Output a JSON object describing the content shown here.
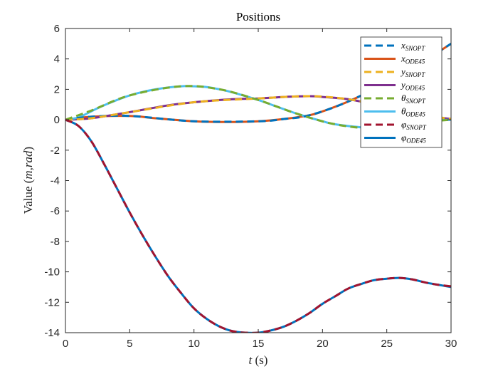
{
  "chart_data": {
    "type": "line",
    "title": "Positions",
    "xlabel": "t (s)",
    "ylabel": "Value (m,rad)",
    "xlim": [
      0,
      30
    ],
    "ylim": [
      -14,
      6
    ],
    "xticks": [
      "0",
      "5",
      "10",
      "15",
      "20",
      "25",
      "30"
    ],
    "yticks": [
      "6",
      "4",
      "2",
      "0",
      "-2",
      "-4",
      "-6",
      "-8",
      "-10",
      "-12",
      "-14"
    ],
    "grid": false,
    "legend_position": "top-right",
    "series": [
      {
        "name": "x_SNOPT",
        "style": "dashed",
        "color": "#0072BD",
        "x": [
          0,
          2,
          5,
          10,
          15,
          17,
          19,
          22,
          26,
          30
        ],
        "y": [
          0,
          0.2,
          0.25,
          -0.1,
          -0.1,
          0.05,
          0.3,
          1.2,
          2.9,
          5
        ]
      },
      {
        "name": "x_ODE45",
        "style": "solid",
        "color": "#D95319",
        "x": [
          0,
          2,
          5,
          7,
          10,
          12.5,
          15,
          17,
          19,
          20,
          22,
          24,
          26,
          28,
          30
        ],
        "y": [
          0,
          0.2,
          0.25,
          0.1,
          -0.1,
          -0.15,
          -0.1,
          0.05,
          0.3,
          0.55,
          1.2,
          2.0,
          2.9,
          3.9,
          5.0
        ]
      },
      {
        "name": "y_SNOPT",
        "style": "dashed",
        "color": "#EDB120",
        "x": [
          0,
          2,
          5,
          10,
          15,
          19,
          22,
          24,
          26,
          30
        ],
        "y": [
          0,
          0.1,
          0.5,
          1.15,
          1.4,
          1.55,
          1.35,
          1.0,
          0.55,
          0.05
        ]
      },
      {
        "name": "y_ODE45",
        "style": "solid",
        "color": "#7E2F8E",
        "x": [
          0,
          2,
          5,
          8,
          10,
          13,
          15,
          17,
          19,
          20,
          22,
          24,
          26,
          28,
          30
        ],
        "y": [
          0,
          0.1,
          0.5,
          0.95,
          1.15,
          1.35,
          1.4,
          1.5,
          1.55,
          1.5,
          1.35,
          1.0,
          0.55,
          0.25,
          0.05
        ]
      },
      {
        "name": "θ_SNOPT",
        "style": "dashed",
        "color": "#77AC30",
        "x": [
          0,
          2,
          5,
          9,
          12,
          15,
          18,
          21,
          24,
          27,
          30
        ],
        "y": [
          0,
          0.6,
          1.6,
          2.2,
          2.0,
          1.3,
          0.4,
          -0.3,
          -0.55,
          -0.2,
          0
        ]
      },
      {
        "name": "θ_ODE45",
        "style": "solid",
        "color": "#4DBEEE",
        "x": [
          0,
          1,
          2,
          3,
          5,
          7,
          9,
          10,
          11,
          12,
          13,
          15,
          16,
          18,
          20,
          21,
          23,
          24,
          25,
          27,
          28,
          30
        ],
        "y": [
          0,
          0.15,
          0.55,
          0.95,
          1.6,
          2.0,
          2.2,
          2.2,
          2.15,
          2.0,
          1.8,
          1.3,
          1.0,
          0.4,
          -0.1,
          -0.3,
          -0.5,
          -0.55,
          -0.5,
          -0.2,
          -0.05,
          0
        ]
      },
      {
        "name": "φ_SNOPT",
        "style": "dashed",
        "color": "#A2142F",
        "x": [
          0,
          1,
          2,
          3,
          4,
          5,
          6,
          7,
          8,
          9,
          10,
          11,
          12,
          13,
          14,
          15,
          16,
          17,
          18,
          19,
          20,
          21,
          22,
          23,
          24,
          25,
          26,
          27,
          28,
          29,
          30
        ],
        "y": [
          0,
          -0.4,
          -1.4,
          -2.9,
          -4.5,
          -6.1,
          -7.6,
          -9.0,
          -10.3,
          -11.4,
          -12.4,
          -13.1,
          -13.6,
          -13.9,
          -14.0,
          -14.0,
          -13.85,
          -13.6,
          -13.2,
          -12.7,
          -12.1,
          -11.6,
          -11.1,
          -10.8,
          -10.55,
          -10.45,
          -10.4,
          -10.5,
          -10.7,
          -10.85,
          -10.95
        ]
      },
      {
        "name": "φ_ODE45",
        "style": "solid",
        "color": "#0072BD",
        "x": [
          0,
          1,
          2,
          3,
          4,
          5,
          6,
          7,
          8,
          9,
          10,
          11,
          12,
          13,
          14,
          15,
          16,
          17,
          18,
          19,
          20,
          21,
          22,
          23,
          24,
          25,
          26,
          27,
          28,
          29,
          30
        ],
        "y": [
          0,
          -0.4,
          -1.4,
          -2.9,
          -4.5,
          -6.1,
          -7.6,
          -9.0,
          -10.3,
          -11.4,
          -12.4,
          -13.1,
          -13.6,
          -13.9,
          -14.0,
          -14.0,
          -13.85,
          -13.6,
          -13.2,
          -12.7,
          -12.1,
          -11.6,
          -11.1,
          -10.8,
          -10.55,
          -10.45,
          -10.4,
          -10.5,
          -10.7,
          -10.85,
          -11.0
        ]
      }
    ],
    "legend": [
      {
        "base": "x",
        "sub": "SNOPT",
        "style": "dashed",
        "color": "#0072BD"
      },
      {
        "base": "x",
        "sub": "ODE45",
        "style": "solid",
        "color": "#D95319"
      },
      {
        "base": "y",
        "sub": "SNOPT",
        "style": "dashed",
        "color": "#EDB120"
      },
      {
        "base": "y",
        "sub": "ODE45",
        "style": "solid",
        "color": "#7E2F8E"
      },
      {
        "base": "θ",
        "sub": "SNOPT",
        "style": "dashed",
        "color": "#77AC30"
      },
      {
        "base": "θ",
        "sub": "ODE45",
        "style": "solid",
        "color": "#4DBEEE"
      },
      {
        "base": "φ",
        "sub": "SNOPT",
        "style": "dashed",
        "color": "#A2142F"
      },
      {
        "base": "φ",
        "sub": "ODE45",
        "style": "solid",
        "color": "#0072BD"
      }
    ]
  }
}
